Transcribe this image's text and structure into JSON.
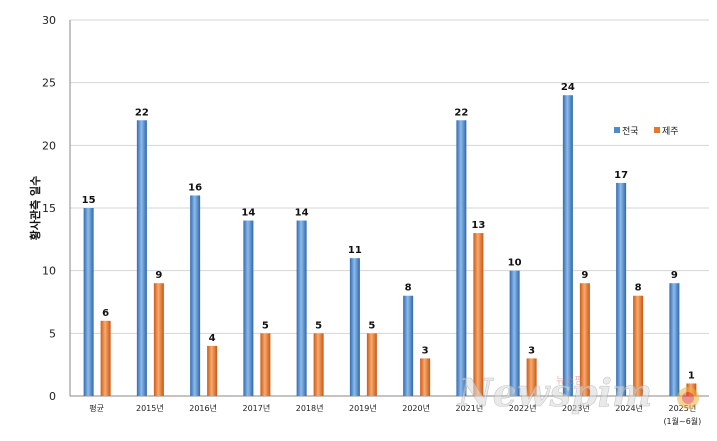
{
  "chart_data": {
    "type": "bar",
    "categories": [
      "평균",
      "2015년",
      "2016년",
      "2017년",
      "2018년",
      "2019년",
      "2020년",
      "2021년",
      "2022년",
      "2023년",
      "2024년",
      "2025년\n(1월~6월)"
    ],
    "series": [
      {
        "name": "전국",
        "color": "#4d8ad0",
        "values": [
          15,
          22,
          16,
          14,
          14,
          11,
          8,
          22,
          10,
          24,
          17,
          9
        ]
      },
      {
        "name": "제주",
        "color": "#e8772e",
        "values": [
          6,
          9,
          4,
          5,
          5,
          5,
          3,
          13,
          3,
          9,
          8,
          1
        ]
      }
    ],
    "ylabel": "황사관측 일수",
    "ylim": [
      0,
      30
    ],
    "yticks": [
      0,
      5,
      10,
      15,
      20,
      25,
      30
    ],
    "grid": true,
    "legend": "right"
  },
  "watermark": {
    "text": "Newspim",
    "sub": "뉴스핌"
  }
}
